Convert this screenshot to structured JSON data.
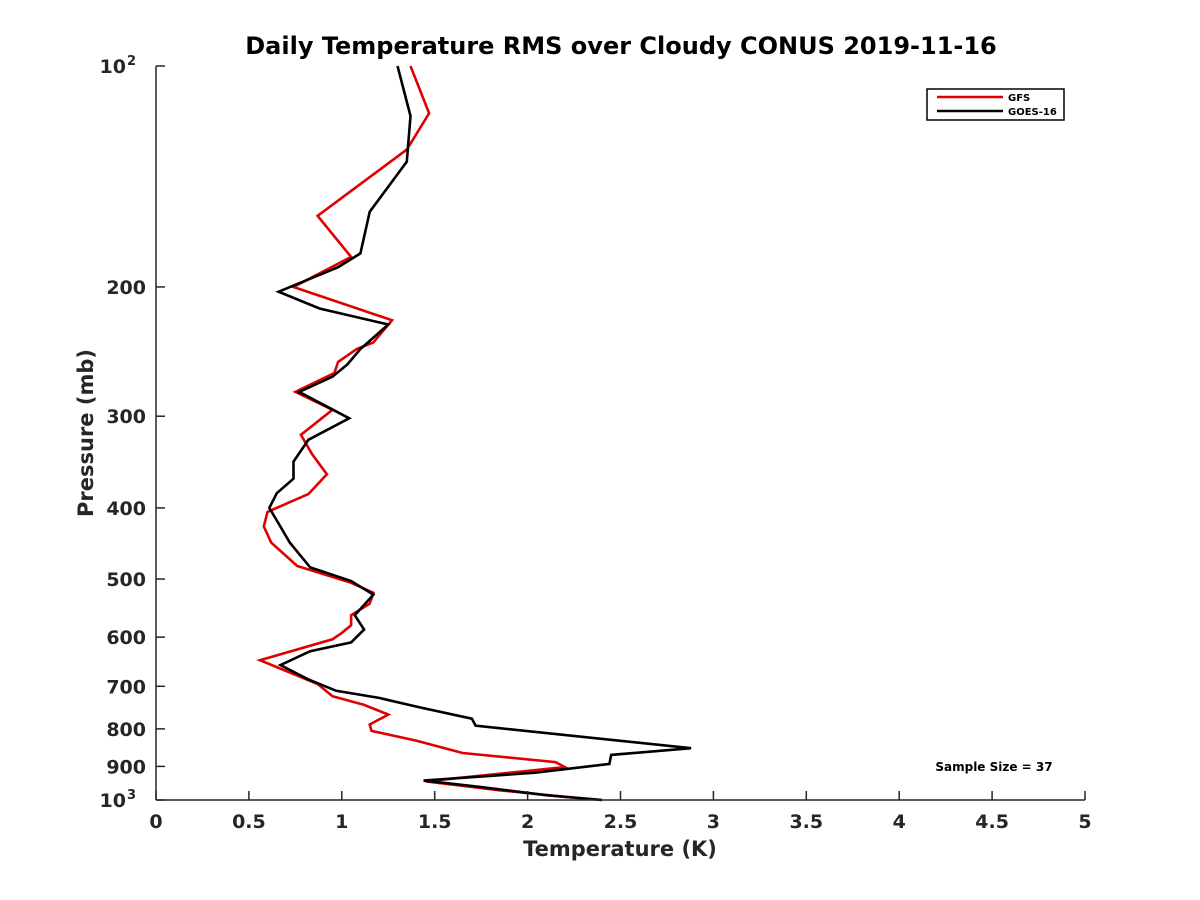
{
  "chart_data": {
    "type": "line",
    "title": "Daily Temperature RMS over Cloudy CONUS 2019-11-16",
    "xlabel": "Temperature (K)",
    "ylabel": "Pressure (mb)",
    "xlim": [
      0,
      5
    ],
    "ylim": [
      100,
      1000
    ],
    "y_scale": "log",
    "y_reversed": true,
    "grid": false,
    "legend_position": "top-right",
    "x_ticks": [
      "0",
      "0.5",
      "1",
      "1.5",
      "2",
      "2.5",
      "3",
      "3.5",
      "4",
      "4.5",
      "5"
    ],
    "y_ticks": [
      {
        "value": 100,
        "label": "10",
        "exp": "2"
      },
      {
        "value": 200,
        "label": "200"
      },
      {
        "value": 300,
        "label": "300"
      },
      {
        "value": 400,
        "label": "400"
      },
      {
        "value": 500,
        "label": "500"
      },
      {
        "value": 600,
        "label": "600"
      },
      {
        "value": 700,
        "label": "700"
      },
      {
        "value": 800,
        "label": "800"
      },
      {
        "value": 900,
        "label": "900"
      },
      {
        "value": 1000,
        "label": "10",
        "exp": "3"
      }
    ],
    "annotation": "Sample Size = 37",
    "series": [
      {
        "name": "GFS",
        "color": "#e00000",
        "x": [
          1.37,
          1.47,
          1.35,
          0.87,
          1.05,
          0.74,
          1.27,
          1.17,
          1.08,
          0.98,
          0.96,
          0.75,
          0.95,
          0.78,
          0.84,
          0.92,
          0.82,
          0.6,
          0.58,
          0.62,
          0.76,
          1.05,
          1.17,
          1.15,
          1.05,
          1.05,
          1.0,
          0.95,
          0.56,
          0.87,
          0.95,
          1.12,
          1.25,
          1.15,
          1.16,
          1.4,
          1.65,
          2.15,
          2.2,
          1.45,
          1.85,
          2.2,
          2.4
        ],
        "y": [
          100,
          116,
          130,
          160,
          182,
          200,
          222,
          238,
          243,
          253,
          262,
          278,
          294,
          318,
          338,
          360,
          383,
          405,
          424,
          446,
          480,
          506,
          522,
          540,
          560,
          578,
          592,
          604,
          645,
          695,
          722,
          742,
          765,
          789,
          805,
          830,
          863,
          888,
          902,
          943,
          970,
          990,
          1000
        ]
      },
      {
        "name": "GOES-16",
        "color": "#000000",
        "x": [
          1.3,
          1.37,
          1.35,
          1.15,
          1.1,
          0.98,
          0.66,
          0.88,
          1.25,
          1.1,
          1.03,
          0.95,
          0.77,
          1.04,
          0.82,
          0.74,
          0.74,
          0.65,
          0.61,
          0.66,
          0.72,
          0.83,
          1.05,
          1.17,
          1.07,
          1.12,
          1.05,
          0.83,
          0.67,
          0.82,
          0.97,
          1.2,
          1.42,
          1.7,
          1.72,
          2.88,
          2.45,
          2.44,
          2.04,
          1.44,
          1.75,
          2.1,
          2.4
        ],
        "y": [
          100,
          117,
          135,
          158,
          180,
          188,
          203,
          214,
          225,
          243,
          255,
          265,
          278,
          302,
          323,
          346,
          365,
          382,
          400,
          420,
          446,
          482,
          503,
          525,
          560,
          586,
          610,
          627,
          655,
          685,
          710,
          726,
          748,
          775,
          792,
          850,
          868,
          893,
          918,
          941,
          960,
          985,
          1000
        ]
      }
    ]
  }
}
